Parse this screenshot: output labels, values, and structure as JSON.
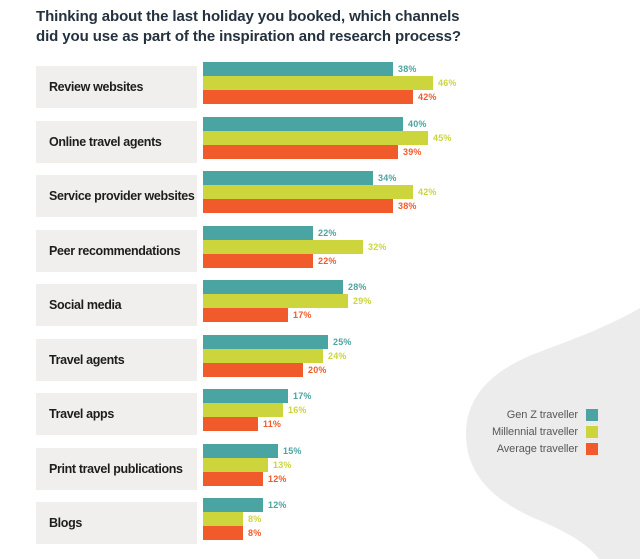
{
  "title_lines": [
    "Thinking about the last holiday you booked, which channels",
    "did you use as part of the inspiration and research process?"
  ],
  "colors": {
    "background": "#ffffff",
    "row_band": "#f0efed",
    "blob": "#ececec",
    "title_text": "#24313f",
    "category_text": "#1d1d1b",
    "legend_text": "#58585a"
  },
  "chart_data": {
    "type": "bar",
    "orientation": "horizontal",
    "title": "Thinking about the last holiday you booked, which channels did you use as part of the inspiration and research process?",
    "value_suffix": "%",
    "xlim": [
      0,
      50
    ],
    "grid": false,
    "axes_shown": false,
    "value_labels": "at bar end, colored as bar",
    "legend_position": "right, inside gray blob",
    "categories": [
      "Review websites",
      "Online travel agents",
      "Service provider websites",
      "Peer recommendations",
      "Social media",
      "Travel agents",
      "Travel apps",
      "Print travel publications",
      "Blogs"
    ],
    "series": [
      {
        "name": "Gen Z traveller",
        "color": "#4aa4a1",
        "values": [
          38,
          40,
          34,
          22,
          28,
          25,
          17,
          15,
          12
        ],
        "labels": [
          "38%",
          "40%",
          "34%",
          "22%",
          "28%",
          "25%",
          "17%",
          "15%",
          "12%"
        ]
      },
      {
        "name": "Millennial traveller",
        "color": "#ccd53c",
        "values": [
          46,
          45,
          42,
          32,
          29,
          24,
          16,
          13,
          8
        ],
        "labels": [
          "46%",
          "45%",
          "42%",
          "32%",
          "29%",
          "24%",
          "16%",
          "13%",
          "8%"
        ]
      },
      {
        "name": "Average traveller",
        "color": "#f15b2b",
        "values": [
          42,
          39,
          38,
          22,
          17,
          20,
          11,
          12,
          8
        ],
        "labels": [
          "42%",
          "39%",
          "38%",
          "22%",
          "17%",
          "20%",
          "11%",
          "12%",
          "8%"
        ]
      }
    ]
  }
}
